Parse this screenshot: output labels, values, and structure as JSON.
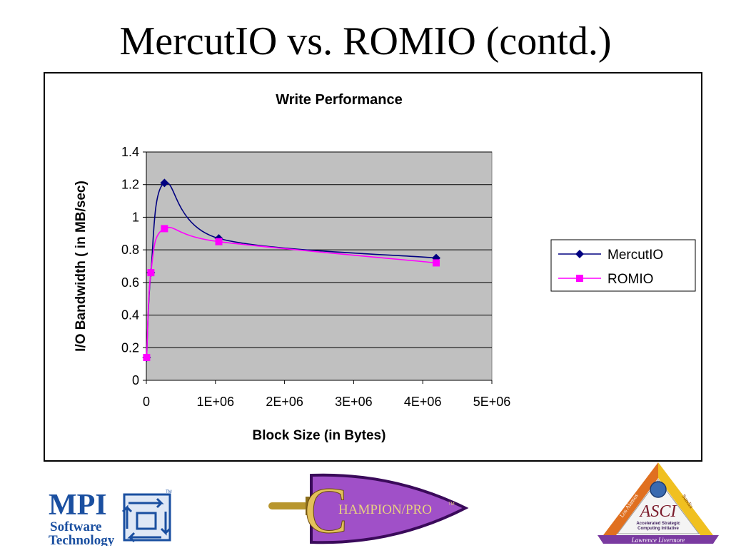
{
  "slide": {
    "title": "MercutIO vs. ROMIO (contd.)"
  },
  "chart_data": {
    "type": "line",
    "title": "Write Performance",
    "xlabel": "Block Size (in Bytes)",
    "ylabel": "I/O Bandwidth ( in MB/sec)",
    "xlim": [
      0,
      5000000
    ],
    "ylim": [
      0,
      1.4
    ],
    "xticks": [
      0,
      1000000,
      2000000,
      3000000,
      4000000,
      5000000
    ],
    "xtick_labels": [
      "0",
      "1E+06",
      "2E+06",
      "3E+06",
      "4E+06",
      "5E+06"
    ],
    "yticks": [
      0,
      0.2,
      0.4,
      0.6,
      0.8,
      1,
      1.2,
      1.4
    ],
    "ytick_labels": [
      "0",
      "0.2",
      "0.4",
      "0.6",
      "0.8",
      "1",
      "1.2",
      "1.4"
    ],
    "grid": "horizontal",
    "legend": "right",
    "plot_background": "#c0c0c0",
    "series": [
      {
        "name": "MercutIO",
        "color": "#000080",
        "marker": "diamond",
        "x": [
          4096,
          65536,
          262144,
          1048576,
          4194304
        ],
        "y": [
          0.14,
          0.66,
          1.21,
          0.87,
          0.75
        ]
      },
      {
        "name": "ROMIO",
        "color": "#ff00ff",
        "marker": "square",
        "x": [
          4096,
          65536,
          262144,
          1048576,
          4194304
        ],
        "y": [
          0.14,
          0.66,
          0.93,
          0.85,
          0.72
        ]
      }
    ]
  },
  "logos": {
    "mpi": {
      "line1": "MPI",
      "line2": "Software",
      "line3": "Technology",
      "mark": "TM"
    },
    "champion": {
      "letter": "C",
      "text": "HAMPION/PRO",
      "mark": "TM"
    },
    "asci": {
      "name": "ASCI",
      "line1": "Accelerated Strategic",
      "line2": "Computing Initiative",
      "lab_left": "Los Alamos",
      "lab_right": "Sandia",
      "lab_bottom": "Lawrence Livermore"
    }
  }
}
